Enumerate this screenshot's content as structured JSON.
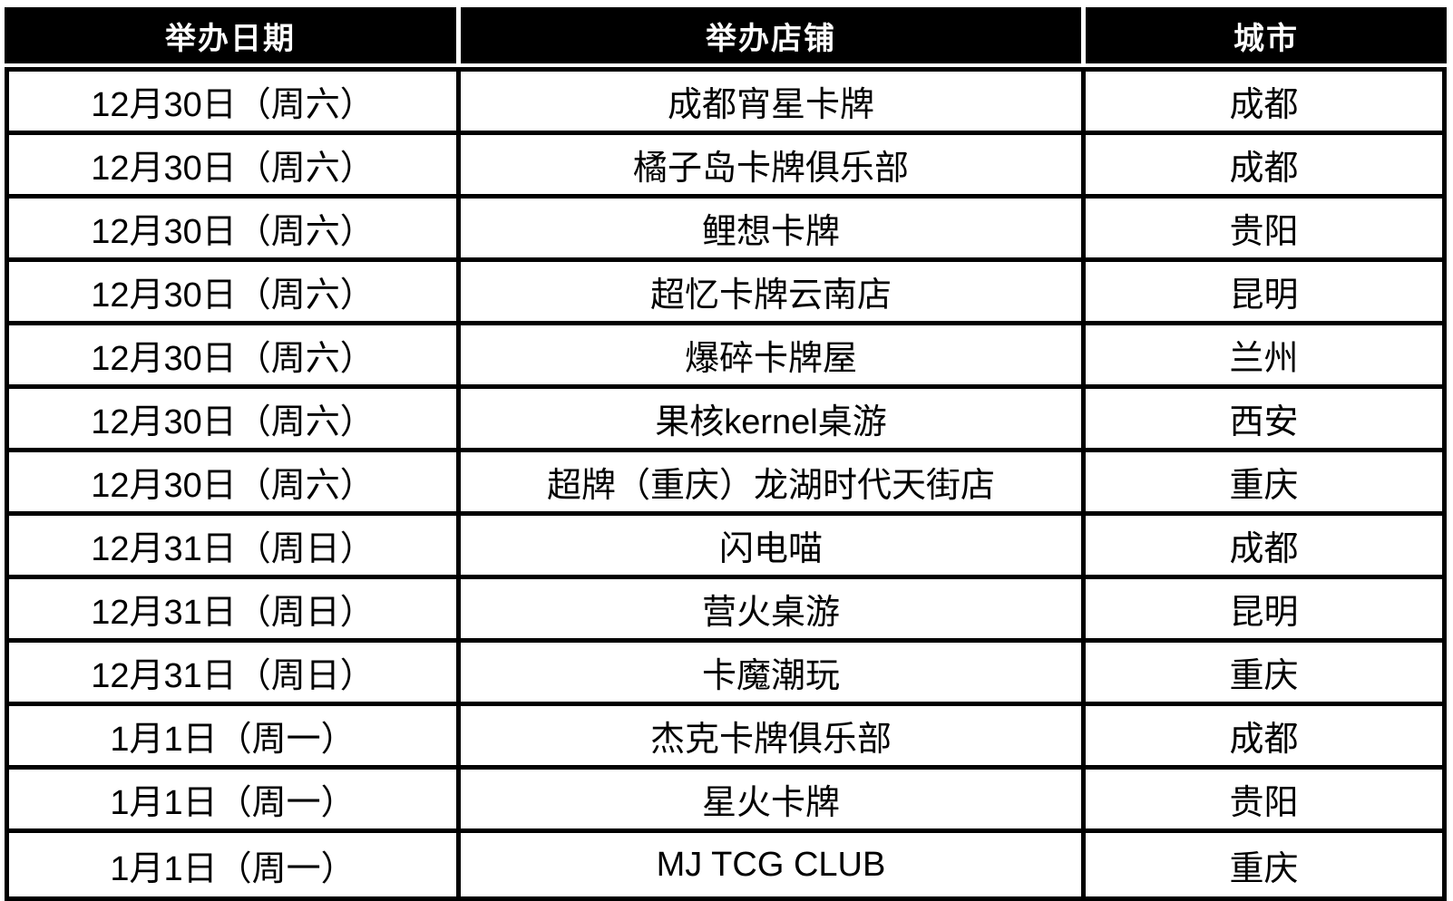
{
  "colors": {
    "header_bg": "#000000",
    "header_text": "#ffffff",
    "border": "#000000",
    "row_bg": "#ffffff",
    "body_text": "#000000"
  },
  "table": {
    "columns": [
      {
        "key": "date",
        "label": "举办日期"
      },
      {
        "key": "store",
        "label": "举办店铺"
      },
      {
        "key": "city",
        "label": "城市"
      }
    ],
    "rows": [
      {
        "date": "12月30日（周六）",
        "store": "成都宵星卡牌",
        "city": "成都"
      },
      {
        "date": "12月30日（周六）",
        "store": "橘子岛卡牌俱乐部",
        "city": "成都"
      },
      {
        "date": "12月30日（周六）",
        "store": "鲤想卡牌",
        "city": "贵阳"
      },
      {
        "date": "12月30日（周六）",
        "store": "超忆卡牌云南店",
        "city": "昆明"
      },
      {
        "date": "12月30日（周六）",
        "store": "爆碎卡牌屋",
        "city": "兰州"
      },
      {
        "date": "12月30日（周六）",
        "store": "果核kernel桌游",
        "city": "西安"
      },
      {
        "date": "12月30日（周六）",
        "store": "超牌（重庆）龙湖时代天街店",
        "city": "重庆"
      },
      {
        "date": "12月31日（周日）",
        "store": "闪电喵",
        "city": "成都"
      },
      {
        "date": "12月31日（周日）",
        "store": "营火桌游",
        "city": "昆明"
      },
      {
        "date": "12月31日（周日）",
        "store": "卡魔潮玩",
        "city": "重庆"
      },
      {
        "date": "1月1日（周一）",
        "store": "杰克卡牌俱乐部",
        "city": "成都"
      },
      {
        "date": "1月1日（周一）",
        "store": "星火卡牌",
        "city": "贵阳"
      },
      {
        "date": "1月1日（周一）",
        "store": "MJ TCG CLUB",
        "city": "重庆"
      }
    ]
  },
  "chart_data": {
    "type": "table",
    "title": "",
    "columns": [
      "举办日期",
      "举办店铺",
      "城市"
    ],
    "rows": [
      [
        "12月30日（周六）",
        "成都宵星卡牌",
        "成都"
      ],
      [
        "12月30日（周六）",
        "橘子岛卡牌俱乐部",
        "成都"
      ],
      [
        "12月30日（周六）",
        "鲤想卡牌",
        "贵阳"
      ],
      [
        "12月30日（周六）",
        "超忆卡牌云南店",
        "昆明"
      ],
      [
        "12月30日（周六）",
        "爆碎卡牌屋",
        "兰州"
      ],
      [
        "12月30日（周六）",
        "果核kernel桌游",
        "西安"
      ],
      [
        "12月30日（周六）",
        "超牌（重庆）龙湖时代天街店",
        "重庆"
      ],
      [
        "12月31日（周日）",
        "闪电喵",
        "成都"
      ],
      [
        "12月31日（周日）",
        "营火桌游",
        "昆明"
      ],
      [
        "12月31日（周日）",
        "卡魔潮玩",
        "重庆"
      ],
      [
        "1月1日（周一）",
        "杰克卡牌俱乐部",
        "成都"
      ],
      [
        "1月1日（周一）",
        "星火卡牌",
        "贵阳"
      ],
      [
        "1月1日（周一）",
        "MJ TCG CLUB",
        "重庆"
      ]
    ]
  }
}
